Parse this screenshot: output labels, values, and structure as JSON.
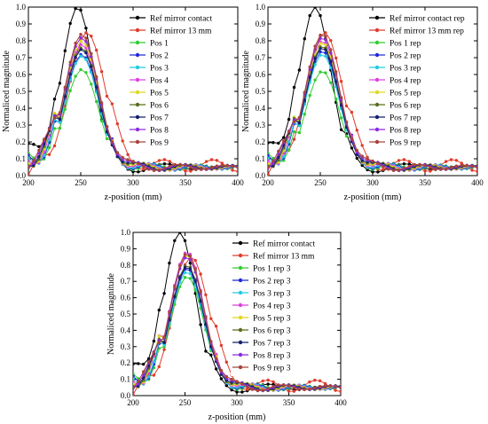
{
  "chart_data": [
    {
      "type": "line",
      "xlabel": "z-position (mm)",
      "ylabel": "Normaliced magnitude",
      "xlim": [
        200,
        400
      ],
      "ylim": [
        0,
        1.0
      ],
      "xticks": [
        200,
        250,
        300,
        350,
        400
      ],
      "yticks": [
        0,
        0.1,
        0.2,
        0.3,
        0.4,
        0.5,
        0.6,
        0.7,
        0.8,
        0.9,
        1.0
      ],
      "ytick_labels": [
        "0.0",
        "0.1",
        "0.2",
        "0.3",
        "0.4",
        "0.5",
        "0.6",
        "0.7",
        "0.8",
        "0.9",
        "1.0"
      ],
      "legend_position": "top-right",
      "grid": false,
      "series": [
        {
          "name": "Ref mirror contact",
          "color": "#000000",
          "peak_x": 247,
          "peak": 1.0,
          "kind": "contact"
        },
        {
          "name": "Ref mirror 13 mm",
          "color": "#e03c2c",
          "peak_x": 256,
          "peak": 0.85,
          "kind": "ref13"
        },
        {
          "name": "Pos 1",
          "color": "#33cc33",
          "peak_x": 251,
          "peak": 0.63,
          "kind": "pos"
        },
        {
          "name": "Pos 2",
          "color": "#1f2bd6",
          "peak_x": 251,
          "peak": 0.72,
          "kind": "pos"
        },
        {
          "name": "Pos 3",
          "color": "#22cce0",
          "peak_x": 251,
          "peak": 0.71,
          "kind": "pos"
        },
        {
          "name": "Pos 4",
          "color": "#e040e0",
          "peak_x": 251,
          "peak": 0.78,
          "kind": "pos"
        },
        {
          "name": "Pos 5",
          "color": "#e0d820",
          "peak_x": 251,
          "peak": 0.8,
          "kind": "pos"
        },
        {
          "name": "Pos 6",
          "color": "#5a6e1c",
          "peak_x": 251,
          "peak": 0.76,
          "kind": "pos"
        },
        {
          "name": "Pos 7",
          "color": "#14206e",
          "peak_x": 251,
          "peak": 0.75,
          "kind": "pos"
        },
        {
          "name": "Pos 8",
          "color": "#8a2be2",
          "peak_x": 251,
          "peak": 0.82,
          "kind": "pos"
        },
        {
          "name": "Pos 9",
          "color": "#a8433a",
          "peak_x": 251,
          "peak": 0.84,
          "kind": "pos"
        }
      ]
    },
    {
      "type": "line",
      "xlabel": "z-position (mm)",
      "ylabel": "Normaliced magnitude",
      "xlim": [
        200,
        400
      ],
      "ylim": [
        0,
        1.0
      ],
      "xticks": [
        200,
        250,
        300,
        350,
        400
      ],
      "yticks": [
        0,
        0.1,
        0.2,
        0.3,
        0.4,
        0.5,
        0.6,
        0.7,
        0.8,
        0.9,
        1.0
      ],
      "ytick_labels": [
        "0.0",
        "0.1",
        "0.2",
        "0.3",
        "0.4",
        "0.5",
        "0.6",
        "0.7",
        "0.8",
        "0.9",
        "1.0"
      ],
      "legend_position": "top-right",
      "grid": false,
      "series": [
        {
          "name": "Ref mirror contact rep",
          "color": "#000000",
          "peak_x": 245,
          "peak": 1.0,
          "kind": "contact"
        },
        {
          "name": "Ref mirror 13 mm rep",
          "color": "#e03c2c",
          "peak_x": 254,
          "peak": 0.85,
          "kind": "ref13"
        },
        {
          "name": "Pos 1 rep",
          "color": "#33cc33",
          "peak_x": 252,
          "peak": 0.62,
          "kind": "pos"
        },
        {
          "name": "Pos 2 rep",
          "color": "#1f2bd6",
          "peak_x": 252,
          "peak": 0.74,
          "kind": "pos"
        },
        {
          "name": "Pos 3 rep",
          "color": "#22cce0",
          "peak_x": 252,
          "peak": 0.72,
          "kind": "pos"
        },
        {
          "name": "Pos 4 rep",
          "color": "#e040e0",
          "peak_x": 252,
          "peak": 0.8,
          "kind": "pos"
        },
        {
          "name": "Pos 5 rep",
          "color": "#e0d820",
          "peak_x": 252,
          "peak": 0.79,
          "kind": "pos"
        },
        {
          "name": "Pos 6 rep",
          "color": "#5a6e1c",
          "peak_x": 252,
          "peak": 0.77,
          "kind": "pos"
        },
        {
          "name": "Pos 7 rep",
          "color": "#14206e",
          "peak_x": 252,
          "peak": 0.76,
          "kind": "pos"
        },
        {
          "name": "Pos 8 rep",
          "color": "#8a2be2",
          "peak_x": 252,
          "peak": 0.82,
          "kind": "pos"
        },
        {
          "name": "Pos 9 rep",
          "color": "#a8433a",
          "peak_x": 252,
          "peak": 0.84,
          "kind": "pos"
        }
      ]
    },
    {
      "type": "line",
      "xlabel": "z-position (mm)",
      "ylabel": "Normaliced magnitude",
      "xlim": [
        200,
        400
      ],
      "ylim": [
        0,
        1.0
      ],
      "xticks": [
        200,
        250,
        300,
        350,
        400
      ],
      "yticks": [
        0,
        0.1,
        0.2,
        0.3,
        0.4,
        0.5,
        0.6,
        0.7,
        0.8,
        0.9,
        1.0
      ],
      "ytick_labels": [
        "0.0",
        "0.1",
        "0.2",
        "0.3",
        "0.4",
        "0.5",
        "0.6",
        "0.7",
        "0.8",
        "0.9",
        "1.0"
      ],
      "legend_position": "top-right",
      "grid": false,
      "series": [
        {
          "name": "Ref mirror contact",
          "color": "#000000",
          "peak_x": 245,
          "peak": 1.0,
          "kind": "contact"
        },
        {
          "name": "Ref mirror 13 mm",
          "color": "#e03c2c",
          "peak_x": 256,
          "peak": 0.85,
          "kind": "ref13"
        },
        {
          "name": "Pos 1 rep 3",
          "color": "#33cc33",
          "peak_x": 252,
          "peak": 0.73,
          "kind": "pos"
        },
        {
          "name": "Pos 2 rep 3",
          "color": "#1f2bd6",
          "peak_x": 252,
          "peak": 0.78,
          "kind": "pos"
        },
        {
          "name": "Pos 3 rep 3",
          "color": "#22cce0",
          "peak_x": 252,
          "peak": 0.76,
          "kind": "pos"
        },
        {
          "name": "Pos 4 rep 3",
          "color": "#e040e0",
          "peak_x": 252,
          "peak": 0.88,
          "kind": "pos"
        },
        {
          "name": "Pos 5 rep 3",
          "color": "#e0d820",
          "peak_x": 252,
          "peak": 0.86,
          "kind": "pos"
        },
        {
          "name": "Pos 6 rep 3",
          "color": "#5a6e1c",
          "peak_x": 252,
          "peak": 0.8,
          "kind": "pos"
        },
        {
          "name": "Pos 7 rep 3",
          "color": "#14206e",
          "peak_x": 252,
          "peak": 0.79,
          "kind": "pos"
        },
        {
          "name": "Pos 8 rep 3",
          "color": "#8a2be2",
          "peak_x": 252,
          "peak": 0.85,
          "kind": "pos"
        },
        {
          "name": "Pos 9 rep 3",
          "color": "#a8433a",
          "peak_x": 252,
          "peak": 0.87,
          "kind": "pos"
        }
      ]
    }
  ]
}
